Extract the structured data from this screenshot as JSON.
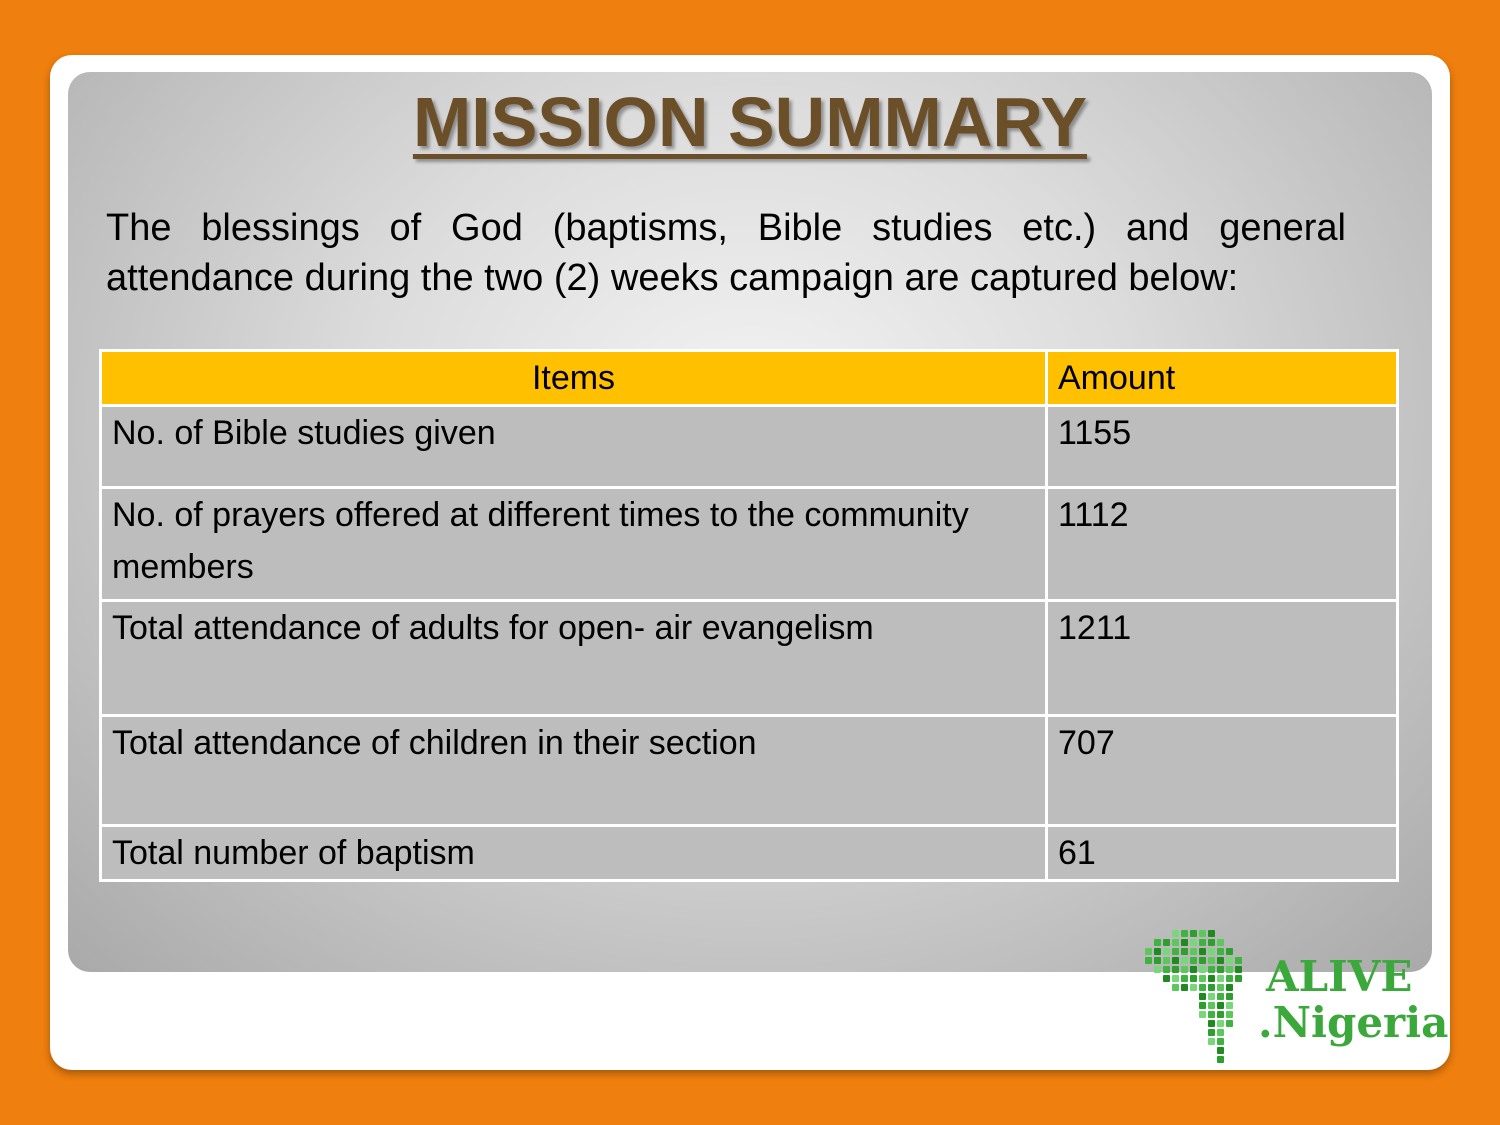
{
  "header": {
    "title": "MISSION SUMMARY"
  },
  "intro": "The blessings of God (baptisms, Bible studies etc.) and general attendance during the two (2) weeks campaign are captured below:",
  "table": {
    "columns": [
      "Items",
      "Amount"
    ],
    "rows": [
      [
        "No. of Bible studies given",
        "1155"
      ],
      [
        "No. of prayers offered at different times to the community members",
        "1112"
      ],
      [
        "Total attendance of adults for open- air evangelism",
        "1211"
      ],
      [
        "Total attendance of children in their section",
        "707"
      ],
      [
        "Total number of baptism",
        "61"
      ]
    ]
  },
  "logo": {
    "line1": "ALIVE",
    "line2": ".Nigeria"
  }
}
